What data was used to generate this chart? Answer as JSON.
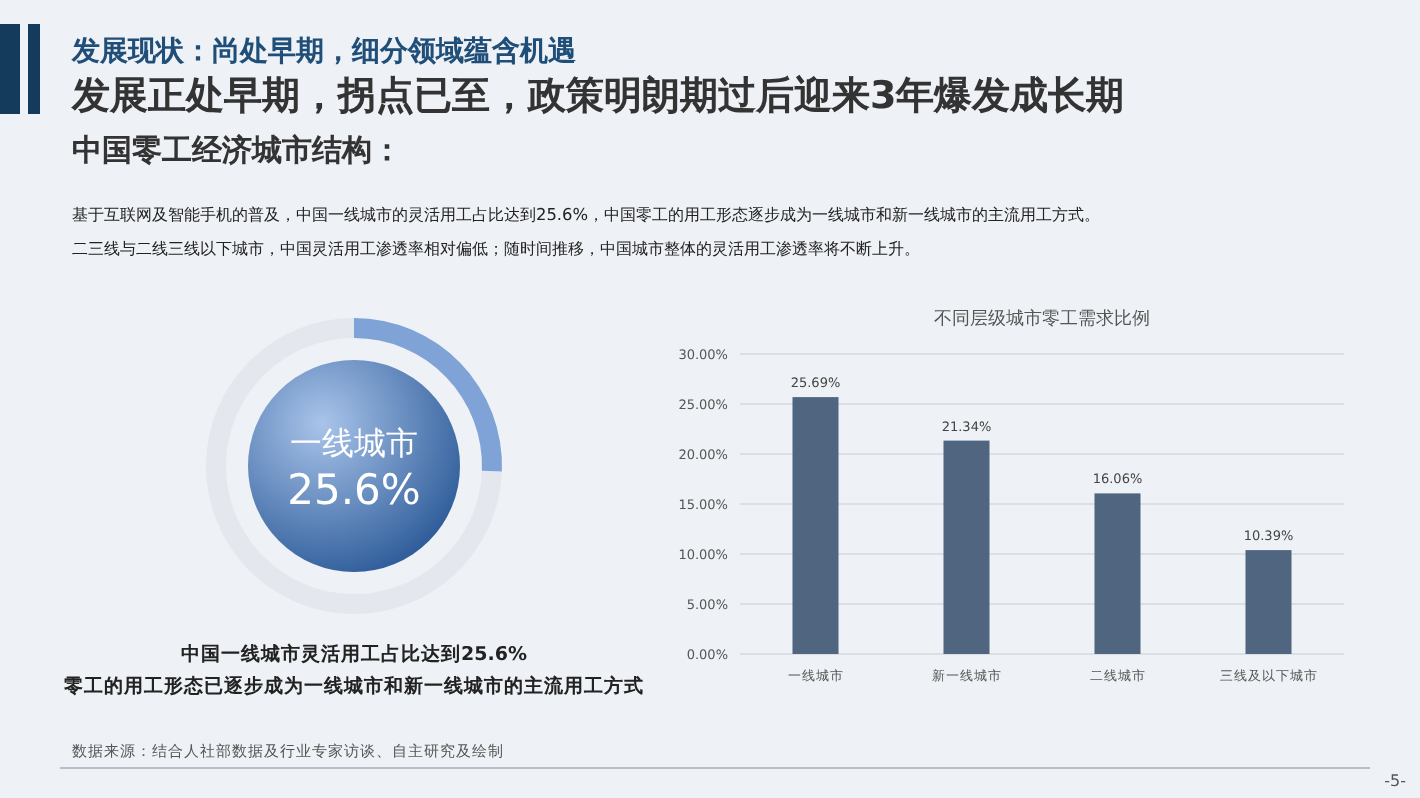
{
  "chart_data": [
    {
      "type": "donut",
      "title": "发展现状：尚处早期，细分领域蕴含机遇",
      "subtitle": "发展正处早期，拐点已至，政策明朗期过后迎来3年爆发成长期",
      "categories": [
        "一线城市",
        null
      ],
      "values": [
        25.6,
        74.4
      ],
      "value_labels": [
        "25.6%",
        null
      ],
      "colors": [
        "#7fa3d6",
        "#e4e8ee"
      ],
      "annotations": [
        "中国零工经济城市结构：",
        "基于互联网及智能手机的普及，中国一线城市的灵活用工占比达到25.6%，中国零工的用工形态逐步成为一线城市和新一线城市的主流用工方式。",
        "二三线与二线三线以下城市，中国灵活用工渗透率相对偏低；随时间推移，中国城市整体的灵活用工渗透率将不断上升。",
        "中国一线城市灵活用工占比达到25.6%",
        "零工的用工形态已逐步成为一线城市和新一线城市的主流用工方式",
        "数据来源：结合人社部数据及行业专家访谈、自主研究及绘制",
        "-5-"
      ]
    },
    {
      "type": "bar",
      "title": "不同层级城市零工需求比例",
      "categories": [
        "一线城市",
        "新一线城市",
        "二线城市",
        "三线及以下城市"
      ],
      "values": [
        25.69,
        21.34,
        16.06,
        10.39
      ],
      "value_labels": [
        "25.69%",
        "21.34%",
        "16.06%",
        "10.39%"
      ],
      "color": "#4f6580",
      "ylim": [
        0,
        30
      ],
      "yticks": [
        {
          "value": 0,
          "label": "0.00%"
        },
        {
          "value": 5,
          "label": "5.00%"
        },
        {
          "value": 10,
          "label": "10.00%"
        },
        {
          "value": 15,
          "label": "15.00%"
        },
        {
          "value": 20,
          "label": "20.00%"
        },
        {
          "value": 25,
          "label": "25.00%"
        },
        {
          "value": 30,
          "label": "30.00%"
        }
      ],
      "grid": "y"
    }
  ]
}
